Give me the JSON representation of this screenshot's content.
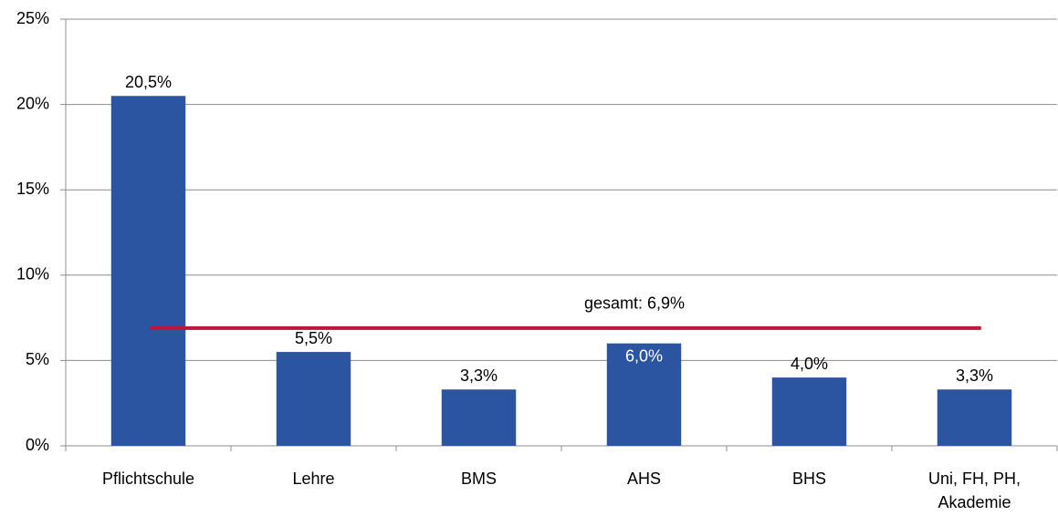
{
  "chart_data": {
    "type": "bar",
    "categories": [
      "Pflichtschule",
      "Lehre",
      "BMS",
      "AHS",
      "BHS",
      "Uni, FH, PH, Akademie"
    ],
    "values": [
      20.5,
      5.5,
      3.3,
      6.0,
      4.0,
      3.3
    ],
    "value_labels": [
      "20,5%",
      "5,5%",
      "3,3%",
      "6,0%",
      "4,0%",
      "3,3%"
    ],
    "value_label_colors": [
      "#000000",
      "#000000",
      "#000000",
      "#ffffff",
      "#000000",
      "#000000"
    ],
    "color": "#2b55a0",
    "ylim": [
      0,
      25
    ],
    "yticks": [
      {
        "value": 0,
        "label": "0%"
      },
      {
        "value": 5,
        "label": "5%"
      },
      {
        "value": 10,
        "label": "10%"
      },
      {
        "value": 15,
        "label": "15%"
      },
      {
        "value": 20,
        "label": "20%"
      },
      {
        "value": 25,
        "label": "25%"
      }
    ],
    "grid": true,
    "reference_line": {
      "value": 6.9,
      "label": "gesamt: 6,9%",
      "color": "#c0143c"
    }
  }
}
